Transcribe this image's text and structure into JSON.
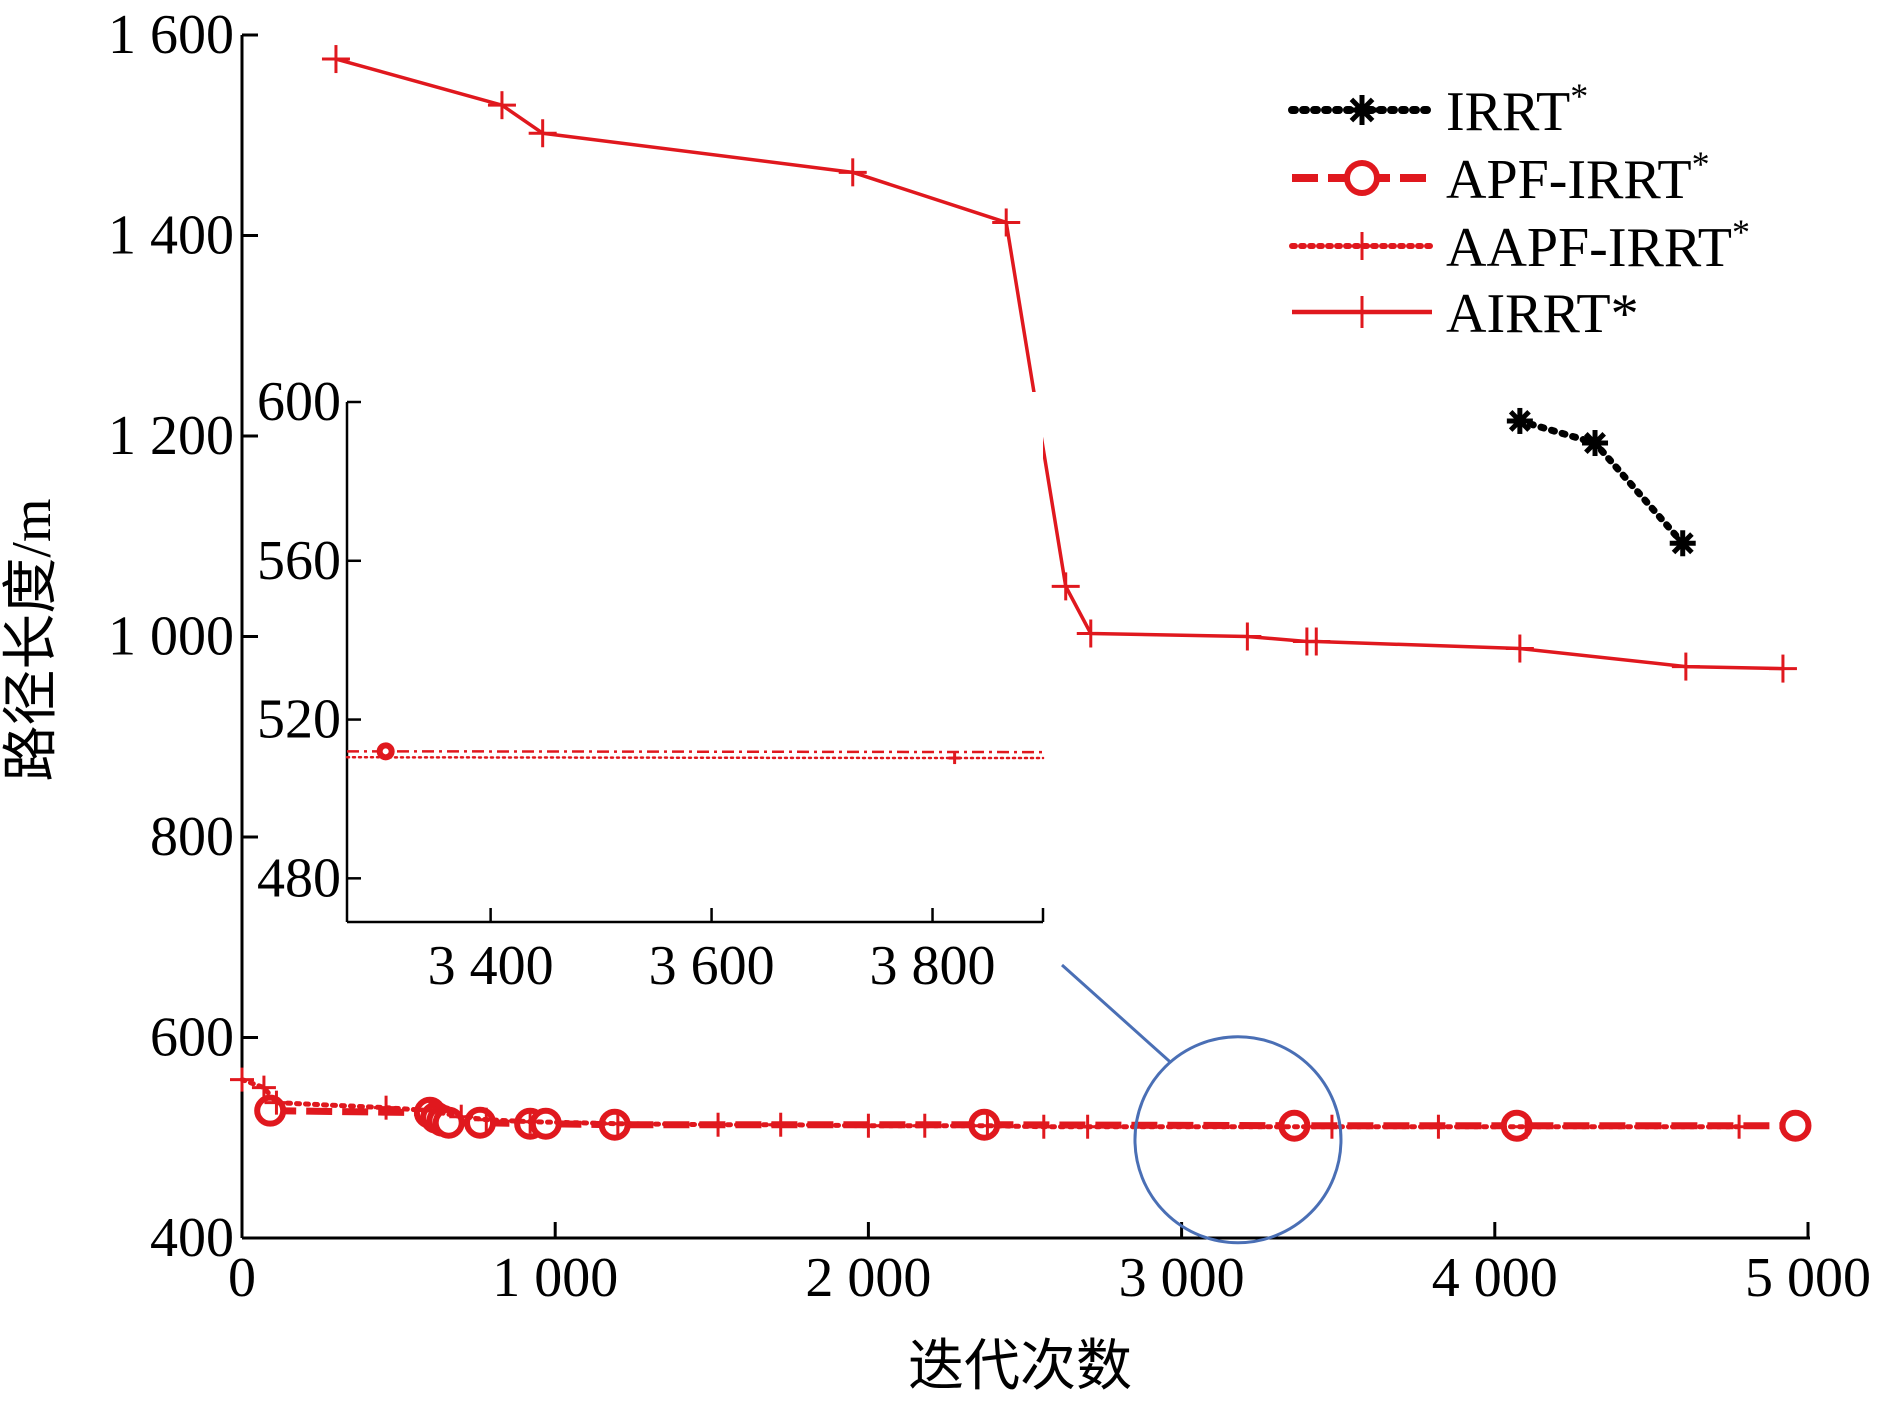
{
  "colors": {
    "red": "#e0181e",
    "black": "#000000",
    "highlight": "#4a6fb5"
  },
  "chart_data": [
    {
      "type": "line",
      "role": "main",
      "xlabel": "迭代次数",
      "ylabel": "路径长度/m",
      "xlim": [
        0,
        5000
      ],
      "ylim": [
        400,
        1600
      ],
      "xticks": [
        0,
        1000,
        2000,
        3000,
        4000,
        5000
      ],
      "xtick_labels": [
        "0",
        "1 000",
        "2 000",
        "3 000",
        "4 000",
        "5 000"
      ],
      "yticks": [
        400,
        600,
        800,
        1000,
        1200,
        1400,
        1600
      ],
      "ytick_labels": [
        "400",
        "600",
        "800",
        "1 000",
        "1 200",
        "1 400",
        "1 600"
      ],
      "legend": {
        "position": "top-right",
        "entries": [
          {
            "base": "IRRT",
            "sup": "*"
          },
          {
            "base": "APF-IRRT",
            "sup": "*"
          },
          {
            "base": "AAPF-IRRT",
            "sup": "*"
          },
          {
            "base": "AIRRT*",
            "sup": ""
          }
        ]
      },
      "series": [
        {
          "name": "IRRT*",
          "style": "dotted-black-star",
          "x": [
            4080,
            4320,
            4600
          ],
          "y": [
            1215,
            1193,
            1093
          ]
        },
        {
          "name": "APF-IRRT*",
          "style": "dashed-red-circle",
          "x": [
            90,
            600,
            620,
            640,
            660,
            760,
            920,
            970,
            1190,
            2370,
            3360,
            4070,
            4960
          ],
          "y": [
            527,
            525,
            520,
            517,
            515,
            515,
            514,
            514,
            513,
            513,
            512,
            512,
            512
          ]
        },
        {
          "name": "AAPF-IRRT*",
          "style": "dotted-red-plus",
          "x": [
            0,
            70,
            110,
            460,
            600,
            700,
            780,
            920,
            1200,
            1520,
            1720,
            2000,
            2180,
            2380,
            2560,
            2700,
            3480,
            3820,
            4100,
            4780
          ],
          "y": [
            558,
            550,
            535,
            530,
            527,
            521,
            518,
            516,
            514,
            513,
            513,
            512,
            512,
            512,
            511,
            511,
            511,
            511,
            511,
            511
          ]
        },
        {
          "name": "AIRRT*",
          "style": "solid-red-plus",
          "x": [
            300,
            830,
            960,
            1950,
            2440,
            2630,
            2710,
            3210,
            3400,
            3430,
            4080,
            4610,
            4920
          ],
          "y": [
            1576,
            1530,
            1502,
            1463,
            1413,
            1050,
            1003,
            1000,
            995,
            995,
            988,
            970,
            968
          ]
        }
      ],
      "annotation": {
        "type": "zoom-circle",
        "center": [
          3180,
          498
        ]
      }
    },
    {
      "type": "line",
      "role": "inset",
      "xlim": [
        3270,
        3900
      ],
      "ylim": [
        469,
        600
      ],
      "xticks": [
        3400,
        3600,
        3800
      ],
      "xtick_labels": [
        "3 400",
        "3 600",
        "3 800"
      ],
      "yticks": [
        480,
        520,
        560,
        600
      ],
      "ytick_labels": [
        "480",
        "520",
        "560",
        "600"
      ],
      "series": [
        {
          "name": "APF-IRRT*",
          "style": "dashdot-red-circle",
          "x": [
            3270,
            3305,
            3900
          ],
          "y": [
            512,
            512,
            511.8
          ]
        },
        {
          "name": "AAPF-IRRT*",
          "style": "dotted-red-plus",
          "x": [
            3270,
            3820,
            3900
          ],
          "y": [
            510.5,
            510.3,
            510.3
          ]
        }
      ]
    }
  ]
}
